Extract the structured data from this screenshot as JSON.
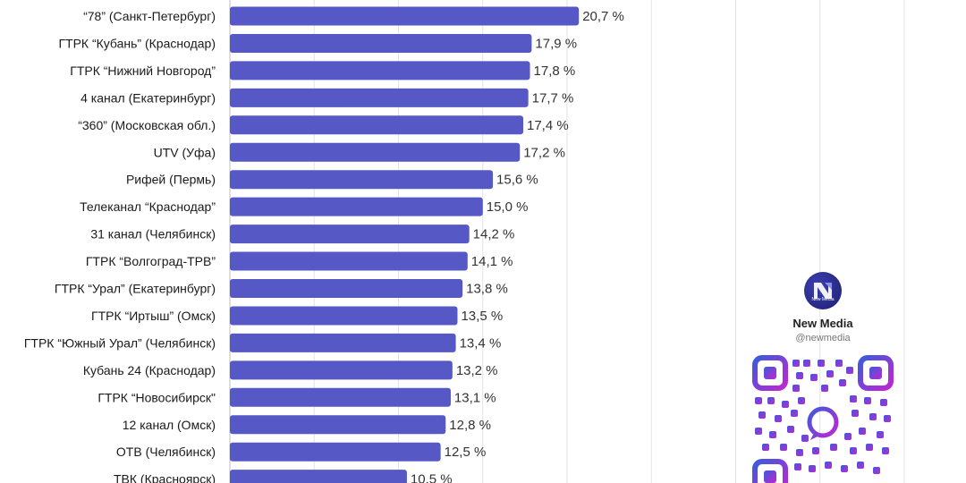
{
  "chart_data": {
    "type": "bar",
    "orientation": "horizontal",
    "categories": [
      "“78” (Санкт-Петербург)",
      "ГТРК “Кубань” (Краснодар)",
      "ГТРК “Нижний Новгород”",
      "4 канал (Екатеринбург)",
      "“360” (Московская обл.)",
      "UTV (Уфа)",
      "Рифей (Пермь)",
      "Телеканал “Краснодар”",
      "31 канал (Челябинск)",
      "ГТРК “Волгоград-ТРВ”",
      "ГТРК “Урал” (Екатеринбург)",
      "ГТРК “Иртыш” (Омск)",
      "ГТРК “Южный Урал” (Челябинск)",
      "Кубань 24 (Краснодар)",
      "ГТРК “Новосибирск\"",
      "12 канал (Омск)",
      "ОТВ (Челябинск)",
      "ТВК (Красноярск)"
    ],
    "values": [
      20.7,
      17.9,
      17.8,
      17.7,
      17.4,
      17.2,
      15.6,
      15.0,
      14.2,
      14.1,
      13.8,
      13.5,
      13.4,
      13.2,
      13.1,
      12.8,
      12.5,
      10.5
    ],
    "value_labels": [
      "20,7 %",
      "17,9 %",
      "17,8 %",
      "17,7 %",
      "17,4 %",
      "17,2 %",
      "15,6 %",
      "15,0 %",
      "14,2 %",
      "14,1 %",
      "13,8 %",
      "13,5 %",
      "13,4 %",
      "13,2 %",
      "13,1 %",
      "12,8 %",
      "12,5 %",
      "10,5 %"
    ],
    "xlim": [
      0,
      40
    ],
    "grid": true,
    "bar_color": "#5558c5",
    "gridline_color": "#e3e3e3"
  },
  "brand": {
    "name": "New Media",
    "handle": "@newmedia",
    "logo_caption": "New\nMedia",
    "qr_color_start": "#3b5bdb",
    "qr_color_end": "#c026d3"
  }
}
